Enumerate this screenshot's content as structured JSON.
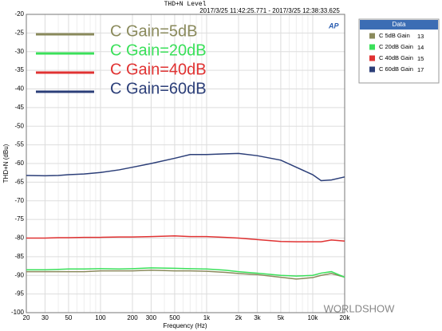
{
  "chart_data": {
    "type": "line",
    "title": "THD+N Level",
    "subtitle": "2017/3/25 11:42:25.771 - 2017/3/25 12:38:33.625",
    "xlabel": "Frequency (Hz)",
    "ylabel": "THD+N (dBu)",
    "xscale": "log",
    "grid": true,
    "xlim": [
      20,
      20000
    ],
    "xticks": [
      20,
      30,
      50,
      100,
      200,
      300,
      500,
      {
        "value": 1000,
        "label": "1k"
      },
      {
        "value": 2000,
        "label": "2k"
      },
      {
        "value": 3000,
        "label": "3k"
      },
      {
        "value": 5000,
        "label": "5k"
      },
      {
        "value": 10000,
        "label": "10k"
      },
      {
        "value": 20000,
        "label": "20k"
      }
    ],
    "ylim": [
      -100,
      -20
    ],
    "yticks": [
      -20,
      -25,
      -30,
      -35,
      -40,
      -45,
      -50,
      -55,
      -60,
      -65,
      -70,
      -75,
      -80,
      -85,
      -90,
      -95,
      -100
    ],
    "x": [
      20,
      30,
      40,
      50,
      70,
      100,
      150,
      200,
      300,
      500,
      700,
      1000,
      1500,
      2000,
      3000,
      5000,
      7000,
      10000,
      12000,
      15000,
      20000
    ],
    "legend_title": "Data",
    "series": [
      {
        "name": "C 5dB Gain",
        "id": 13,
        "annotation": "C Gain=5dB",
        "color": "#8a8a5c",
        "values": [
          -89,
          -89,
          -89,
          -89,
          -89,
          -88.8,
          -88.8,
          -88.8,
          -88.6,
          -88.8,
          -88.8,
          -88.9,
          -89.2,
          -89.5,
          -89.8,
          -90.5,
          -91,
          -90.6,
          -90,
          -89.5,
          -90.5
        ]
      },
      {
        "name": "C 20dB Gain",
        "id": 14,
        "annotation": "C Gain=20dB",
        "color": "#3ae05a",
        "values": [
          -88.5,
          -88.5,
          -88.4,
          -88.3,
          -88.3,
          -88.2,
          -88.3,
          -88.2,
          -88,
          -88.1,
          -88.2,
          -88.3,
          -88.6,
          -89,
          -89.4,
          -90,
          -90.2,
          -90,
          -89.4,
          -89,
          -90.5
        ]
      },
      {
        "name": "C 40dB Gain",
        "id": 15,
        "annotation": "C Gain=40dB",
        "color": "#e03232",
        "values": [
          -80,
          -80,
          -79.9,
          -79.9,
          -79.8,
          -79.8,
          -79.7,
          -79.7,
          -79.6,
          -79.4,
          -79.6,
          -79.6,
          -79.8,
          -80,
          -80.4,
          -80.9,
          -81,
          -81,
          -81,
          -80.5,
          -80.8
        ]
      },
      {
        "name": "C 60dB Gain",
        "id": 17,
        "annotation": "C Gain=60dB",
        "color": "#2b3e78",
        "values": [
          -63.2,
          -63.3,
          -63.2,
          -63,
          -62.8,
          -62.4,
          -61.7,
          -61,
          -60,
          -58.6,
          -57.6,
          -57.6,
          -57.4,
          -57.3,
          -57.9,
          -59.1,
          -61,
          -63,
          -64.6,
          -64.4,
          -63.6
        ]
      }
    ],
    "watermark": "WORLDSHOW",
    "logo": "AP"
  }
}
